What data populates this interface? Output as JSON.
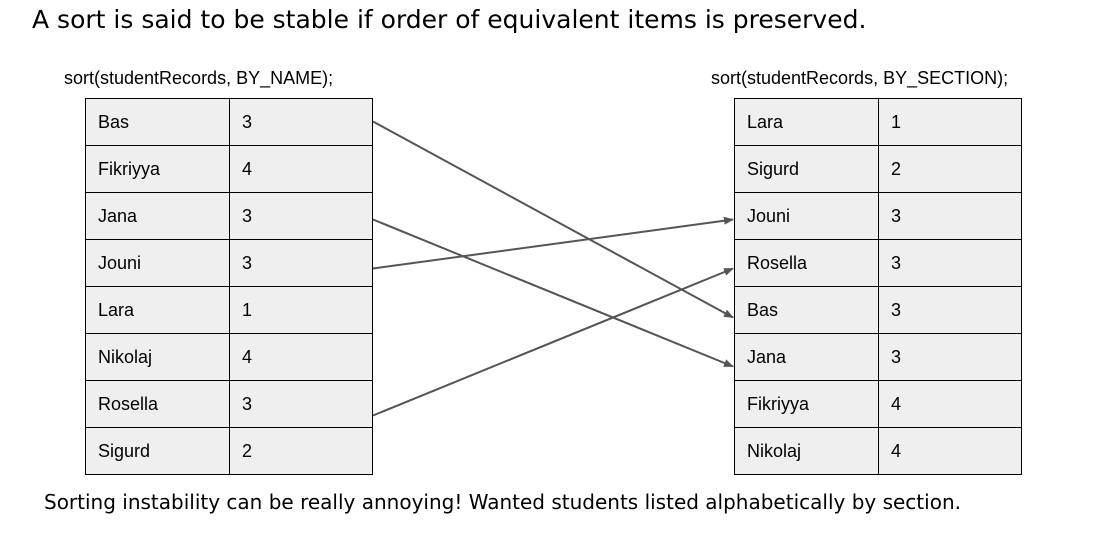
{
  "title": "A sort is said to be stable if order of equivalent items is preserved.",
  "left": {
    "call": "sort(studentRecords, BY_NAME);",
    "rows": [
      {
        "name": "Bas",
        "section": "3"
      },
      {
        "name": "Fikriyya",
        "section": "4"
      },
      {
        "name": "Jana",
        "section": "3"
      },
      {
        "name": "Jouni",
        "section": "3"
      },
      {
        "name": "Lara",
        "section": "1"
      },
      {
        "name": "Nikolaj",
        "section": "4"
      },
      {
        "name": "Rosella",
        "section": "3"
      },
      {
        "name": "Sigurd",
        "section": "2"
      }
    ]
  },
  "right": {
    "call": "sort(studentRecords, BY_SECTION);",
    "rows": [
      {
        "name": "Lara",
        "section": "1"
      },
      {
        "name": "Sigurd",
        "section": "2"
      },
      {
        "name": "Jouni",
        "section": "3"
      },
      {
        "name": "Rosella",
        "section": "3"
      },
      {
        "name": "Bas",
        "section": "3"
      },
      {
        "name": "Jana",
        "section": "3"
      },
      {
        "name": "Fikriyya",
        "section": "4"
      },
      {
        "name": "Nikolaj",
        "section": "4"
      }
    ]
  },
  "arrows": [
    {
      "from": "Bas",
      "to": "Bas"
    },
    {
      "from": "Jana",
      "to": "Jana"
    },
    {
      "from": "Jouni",
      "to": "Jouni"
    },
    {
      "from": "Rosella",
      "to": "Rosella"
    }
  ],
  "colors": {
    "arrow": "#555555",
    "cell": "#efefef",
    "border": "#000000"
  },
  "footer": "Sorting instability can be really annoying! Wanted students listed alphabetically by section."
}
